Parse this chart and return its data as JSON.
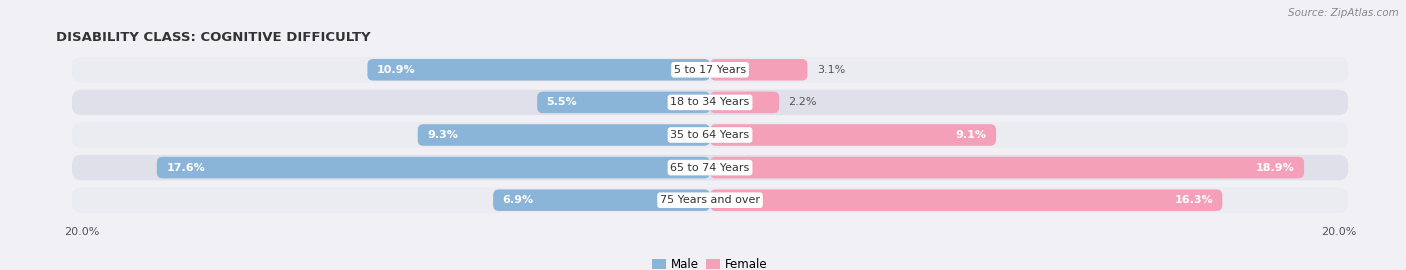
{
  "title": "DISABILITY CLASS: COGNITIVE DIFFICULTY",
  "source": "Source: ZipAtlas.com",
  "categories": [
    "5 to 17 Years",
    "18 to 34 Years",
    "35 to 64 Years",
    "65 to 74 Years",
    "75 Years and over"
  ],
  "male_values": [
    10.9,
    5.5,
    9.3,
    17.6,
    6.9
  ],
  "female_values": [
    3.1,
    2.2,
    9.1,
    18.9,
    16.3
  ],
  "male_color": "#8ab4d8",
  "male_color_dark": "#5a8fc0",
  "female_color": "#f4a0b8",
  "female_color_dark": "#e06090",
  "row_bg_color_light": "#ebebf2",
  "row_bg_color_dark": "#e0e0ea",
  "max_val": 20.0,
  "legend_labels": [
    "Male",
    "Female"
  ],
  "title_fontsize": 9.5,
  "source_fontsize": 7.5,
  "bar_label_fontsize": 8,
  "category_label_fontsize": 8,
  "axis_label_fontsize": 8,
  "inside_threshold_male": 4.0,
  "inside_threshold_female": 4.0
}
